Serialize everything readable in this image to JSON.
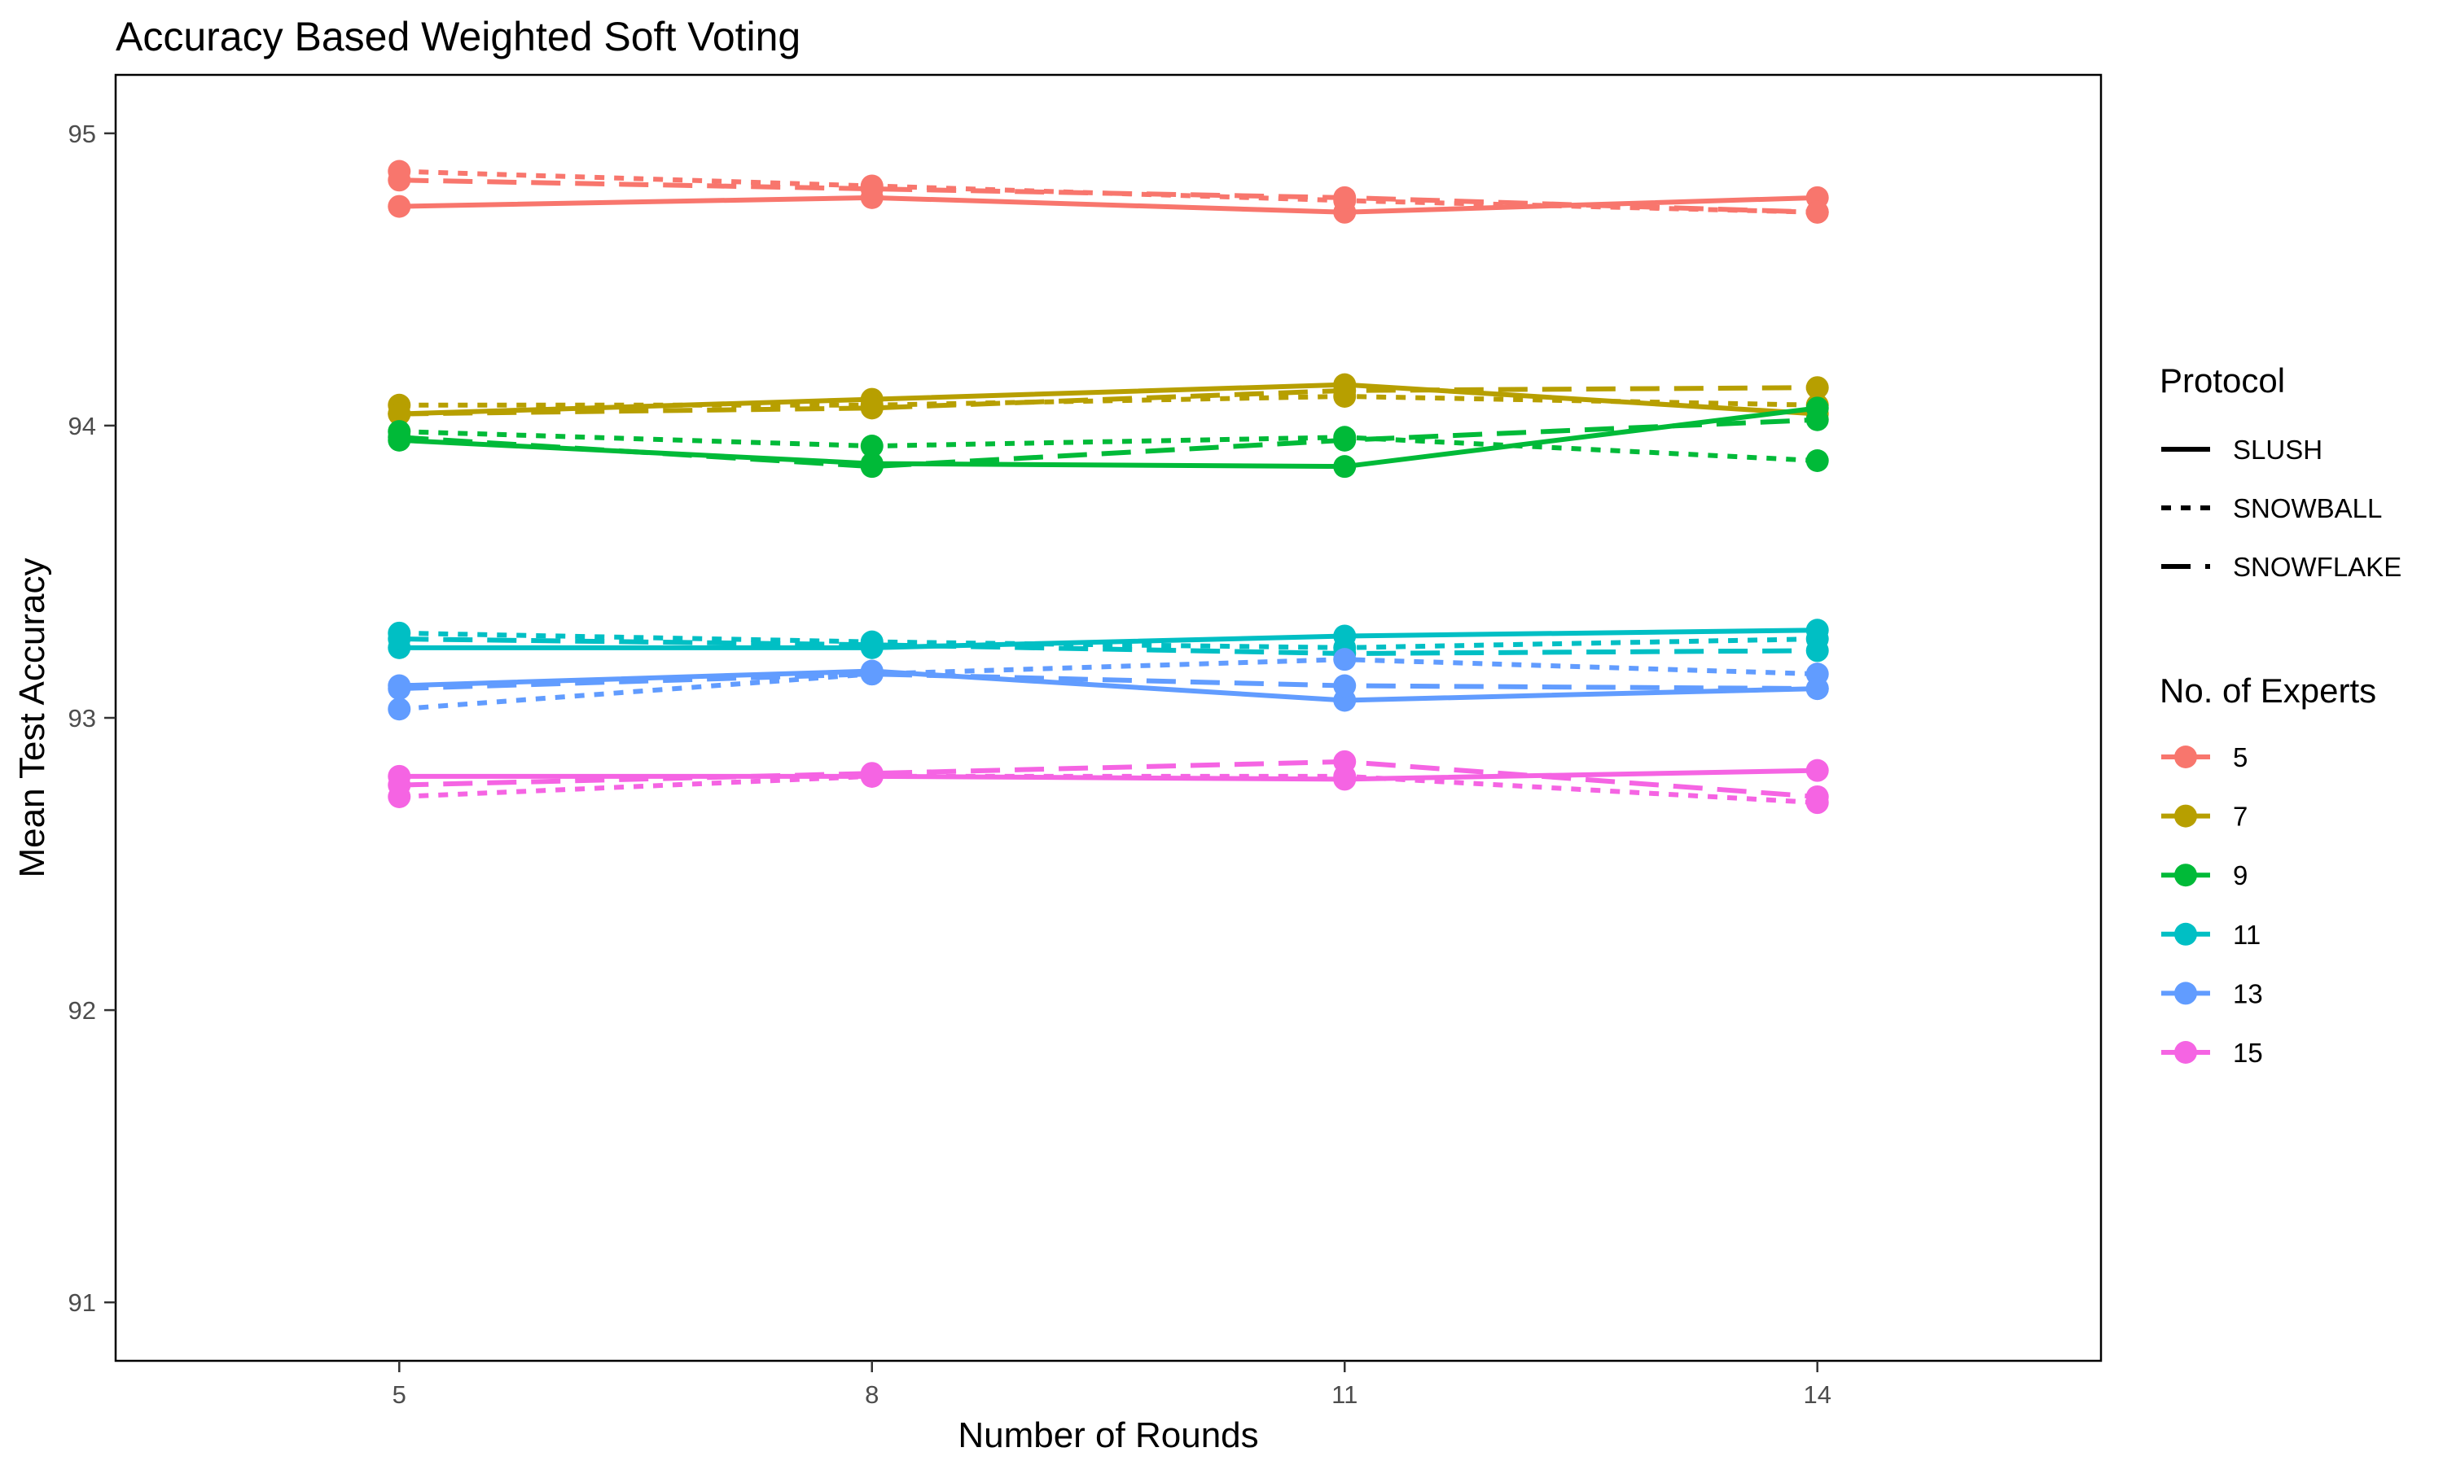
{
  "chart_data": {
    "type": "line",
    "title": "Accuracy Based Weighted Soft Voting",
    "xlabel": "Number of Rounds",
    "ylabel": "Mean Test Accuracy",
    "x": [
      5,
      8,
      11,
      14
    ],
    "xlim": [
      3.2,
      15.8
    ],
    "ylim": [
      90.8,
      95.2
    ],
    "x_ticks": [
      "5",
      "8",
      "11",
      "14"
    ],
    "y_ticks": [
      "91",
      "92",
      "93",
      "94",
      "95"
    ],
    "grid": false,
    "legend_position": "right",
    "legend_protocol": {
      "title": "Protocol",
      "entries": [
        {
          "label": "SLUSH",
          "dash": "solid"
        },
        {
          "label": "SNOWBALL",
          "dash": "dotted"
        },
        {
          "label": "SNOWFLAKE",
          "dash": "dashed"
        }
      ]
    },
    "legend_experts": {
      "title": "No. of Experts",
      "entries": [
        {
          "label": "5",
          "color": "#F8766D"
        },
        {
          "label": "7",
          "color": "#B79F00"
        },
        {
          "label": "9",
          "color": "#00BA38"
        },
        {
          "label": "11",
          "color": "#00BFC4"
        },
        {
          "label": "13",
          "color": "#619CFF"
        },
        {
          "label": "15",
          "color": "#F564E3"
        }
      ]
    },
    "series": [
      {
        "experts": "5",
        "protocol": "SLUSH",
        "color": "#F8766D",
        "dash": "solid",
        "values": [
          94.75,
          94.78,
          94.73,
          94.78
        ]
      },
      {
        "experts": "5",
        "protocol": "SNOWBALL",
        "color": "#F8766D",
        "dash": "dotted",
        "values": [
          94.87,
          94.82,
          94.77,
          94.73
        ]
      },
      {
        "experts": "5",
        "protocol": "SNOWFLAKE",
        "color": "#F8766D",
        "dash": "dashed",
        "values": [
          94.84,
          94.81,
          94.78,
          94.73
        ]
      },
      {
        "experts": "7",
        "protocol": "SLUSH",
        "color": "#B79F00",
        "dash": "solid",
        "values": [
          94.04,
          94.09,
          94.14,
          94.04
        ]
      },
      {
        "experts": "7",
        "protocol": "SNOWBALL",
        "color": "#B79F00",
        "dash": "dotted",
        "values": [
          94.07,
          94.07,
          94.1,
          94.07
        ]
      },
      {
        "experts": "7",
        "protocol": "SNOWFLAKE",
        "color": "#B79F00",
        "dash": "dashed",
        "values": [
          94.04,
          94.06,
          94.12,
          94.13
        ]
      },
      {
        "experts": "9",
        "protocol": "SLUSH",
        "color": "#00BA38",
        "dash": "solid",
        "values": [
          93.95,
          93.87,
          93.86,
          94.06
        ]
      },
      {
        "experts": "9",
        "protocol": "SNOWBALL",
        "color": "#00BA38",
        "dash": "dotted",
        "values": [
          93.98,
          93.93,
          93.96,
          93.88
        ]
      },
      {
        "experts": "9",
        "protocol": "SNOWFLAKE",
        "color": "#00BA38",
        "dash": "dashed",
        "values": [
          93.96,
          93.86,
          93.95,
          94.02
        ]
      },
      {
        "experts": "11",
        "protocol": "SLUSH",
        "color": "#00BFC4",
        "dash": "solid",
        "values": [
          93.24,
          93.24,
          93.28,
          93.3
        ]
      },
      {
        "experts": "11",
        "protocol": "SNOWBALL",
        "color": "#00BFC4",
        "dash": "dotted",
        "values": [
          93.29,
          93.26,
          93.24,
          93.27
        ]
      },
      {
        "experts": "11",
        "protocol": "SNOWFLAKE",
        "color": "#00BFC4",
        "dash": "dashed",
        "values": [
          93.27,
          93.25,
          93.22,
          93.23
        ]
      },
      {
        "experts": "13",
        "protocol": "SLUSH",
        "color": "#619CFF",
        "dash": "solid",
        "values": [
          93.11,
          93.16,
          93.06,
          93.1
        ]
      },
      {
        "experts": "13",
        "protocol": "SNOWBALL",
        "color": "#619CFF",
        "dash": "dotted",
        "values": [
          93.03,
          93.15,
          93.2,
          93.15
        ]
      },
      {
        "experts": "13",
        "protocol": "SNOWFLAKE",
        "color": "#619CFF",
        "dash": "dashed",
        "values": [
          93.1,
          93.15,
          93.11,
          93.1
        ]
      },
      {
        "experts": "15",
        "protocol": "SLUSH",
        "color": "#F564E3",
        "dash": "solid",
        "values": [
          92.8,
          92.8,
          92.79,
          92.82
        ]
      },
      {
        "experts": "15",
        "protocol": "SNOWBALL",
        "color": "#F564E3",
        "dash": "dotted",
        "values": [
          92.73,
          92.8,
          92.8,
          92.71
        ]
      },
      {
        "experts": "15",
        "protocol": "SNOWFLAKE",
        "color": "#F564E3",
        "dash": "dashed",
        "values": [
          92.77,
          92.81,
          92.85,
          92.73
        ]
      }
    ]
  }
}
